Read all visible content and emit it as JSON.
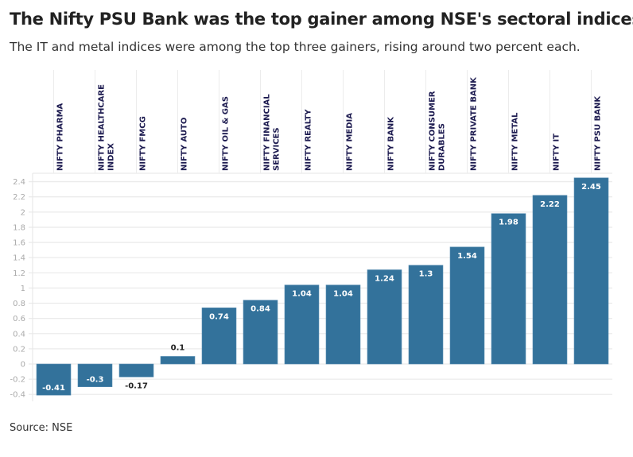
{
  "chart_data": {
    "type": "bar",
    "title": "The Nifty PSU Bank was the top gainer among NSE's sectoral indices",
    "subtitle": "The IT and metal indices were among the top three gainers, rising around two percent each.",
    "source": "Source: NSE",
    "categories": [
      [
        "NIFTY PHARMA"
      ],
      [
        "NIFTY HEALTHCARE",
        "INDEX"
      ],
      [
        "NIFTY FMCG"
      ],
      [
        "NIFTY AUTO"
      ],
      [
        "NIFTY OIL & GAS"
      ],
      [
        "NIFTY FINANCIAL",
        "SERVICES"
      ],
      [
        "NIFTY REALTY"
      ],
      [
        "NIFTY MEDIA"
      ],
      [
        "NIFTY BANK"
      ],
      [
        "NIFTY CONSUMER",
        "DURABLES"
      ],
      [
        "NIFTY PRIVATE BANK"
      ],
      [
        "NIFTY METAL"
      ],
      [
        "NIFTY IT"
      ],
      [
        "NIFTY PSU BANK"
      ]
    ],
    "values": [
      -0.41,
      -0.3,
      -0.17,
      0.1,
      0.74,
      0.84,
      1.04,
      1.04,
      1.24,
      1.3,
      1.54,
      1.98,
      2.22,
      2.45
    ],
    "yticks": [
      -0.4,
      -0.2,
      0,
      0.2,
      0.4,
      0.6,
      0.8,
      1,
      1.2,
      1.4,
      1.6,
      1.8,
      2,
      2.2,
      2.4
    ],
    "ylim": [
      -0.4,
      2.4
    ],
    "grid": true,
    "bar_color": "#33729b",
    "xaxis_position": "top"
  }
}
